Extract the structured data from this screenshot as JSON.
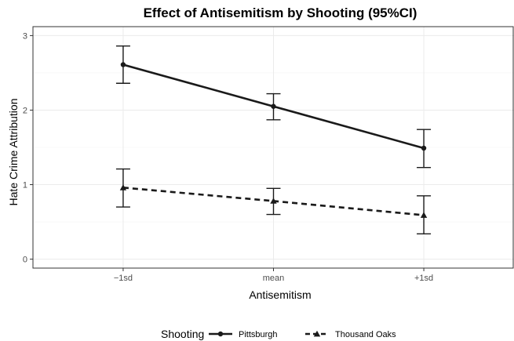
{
  "chart_data": {
    "type": "line",
    "title": "Effect of Antisemitism by Shooting (95%CI)",
    "xlabel": "Antisemitism",
    "ylabel": "Hate Crime Attribution",
    "categories": [
      "−1sd",
      "mean",
      "+1sd"
    ],
    "yticks": [
      "0",
      "1",
      "2",
      "3"
    ],
    "ylim": [
      -0.12,
      3.12
    ],
    "grid": true,
    "legend": {
      "title": "Shooting",
      "placement": "bottom"
    },
    "series": [
      {
        "name": "Pittsburgh",
        "line": "solid",
        "marker": "circle",
        "values": [
          2.61,
          2.05,
          1.49
        ],
        "lower": [
          2.36,
          1.87,
          1.23
        ],
        "upper": [
          2.86,
          2.22,
          1.74
        ]
      },
      {
        "name": "Thousand Oaks",
        "line": "dashed",
        "marker": "triangle",
        "values": [
          0.96,
          0.78,
          0.59
        ],
        "lower": [
          0.7,
          0.6,
          0.34
        ],
        "upper": [
          1.21,
          0.95,
          0.85
        ]
      }
    ],
    "colors": {
      "series": "#1a1a1a",
      "grid": "#ebebeb",
      "axis": "#333333"
    }
  }
}
